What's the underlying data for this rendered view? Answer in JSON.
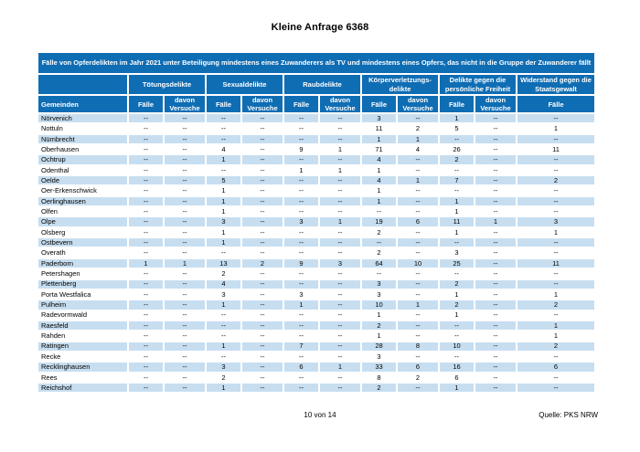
{
  "page": {
    "title": "Kleine Anfrage 6368",
    "page_number": "10 von 14",
    "source": "Quelle: PKS NRW"
  },
  "table": {
    "caption": "Fälle von Opferdelikten im Jahr 2021 unter Beteiligung mindestens eines Zuwanderers als TV und mindestens eines Opfers, das nicht in die Gruppe der Zuwanderer fällt",
    "row_header_label": "Gemeinden",
    "empty_marker": "--",
    "column_groups": [
      {
        "label": "Tötungsdelikte",
        "columns": [
          "Fälle",
          "davon Versuche"
        ]
      },
      {
        "label": "Sexualdelikte",
        "columns": [
          "Fälle",
          "davon Versuche"
        ]
      },
      {
        "label": "Raubdelikte",
        "columns": [
          "Fälle",
          "davon Versuche"
        ]
      },
      {
        "label": "Körperverletzungs-delikte",
        "columns": [
          "Fälle",
          "davon Versuche"
        ]
      },
      {
        "label": "Delikte gegen die persönliche Freiheit",
        "columns": [
          "Fälle",
          "davon Versuche"
        ]
      },
      {
        "label": "Widerstand gegen die Staatsgewalt",
        "columns": [
          "Fälle"
        ]
      }
    ],
    "rows": [
      {
        "gemeinde": "Nörvenich",
        "values": [
          "--",
          "--",
          "--",
          "--",
          "--",
          "--",
          "3",
          "--",
          "1",
          "--",
          "--"
        ]
      },
      {
        "gemeinde": "Nottuln",
        "values": [
          "--",
          "--",
          "--",
          "--",
          "--",
          "--",
          "11",
          "2",
          "5",
          "--",
          "1"
        ]
      },
      {
        "gemeinde": "Nümbrecht",
        "values": [
          "--",
          "--",
          "--",
          "--",
          "--",
          "--",
          "1",
          "1",
          "--",
          "--",
          "--"
        ]
      },
      {
        "gemeinde": "Oberhausen",
        "values": [
          "--",
          "--",
          "4",
          "--",
          "9",
          "1",
          "71",
          "4",
          "26",
          "--",
          "11"
        ]
      },
      {
        "gemeinde": "Ochtrup",
        "values": [
          "--",
          "--",
          "1",
          "--",
          "--",
          "--",
          "4",
          "--",
          "2",
          "--",
          "--"
        ]
      },
      {
        "gemeinde": "Odenthal",
        "values": [
          "--",
          "--",
          "--",
          "--",
          "1",
          "1",
          "1",
          "--",
          "--",
          "--",
          "--"
        ]
      },
      {
        "gemeinde": "Oelde",
        "values": [
          "--",
          "--",
          "5",
          "--",
          "--",
          "--",
          "4",
          "1",
          "7",
          "--",
          "2"
        ]
      },
      {
        "gemeinde": "Oer-Erkenschwick",
        "values": [
          "--",
          "--",
          "1",
          "--",
          "--",
          "--",
          "1",
          "--",
          "--",
          "--",
          "--"
        ]
      },
      {
        "gemeinde": "Oerlinghausen",
        "values": [
          "--",
          "--",
          "1",
          "--",
          "--",
          "--",
          "1",
          "--",
          "1",
          "--",
          "--"
        ]
      },
      {
        "gemeinde": "Olfen",
        "values": [
          "--",
          "--",
          "1",
          "--",
          "--",
          "--",
          "--",
          "--",
          "1",
          "--",
          "--"
        ]
      },
      {
        "gemeinde": "Olpe",
        "values": [
          "--",
          "--",
          "3",
          "--",
          "3",
          "1",
          "19",
          "6",
          "11",
          "1",
          "3"
        ]
      },
      {
        "gemeinde": "Olsberg",
        "values": [
          "--",
          "--",
          "1",
          "--",
          "--",
          "--",
          "2",
          "--",
          "1",
          "--",
          "1"
        ]
      },
      {
        "gemeinde": "Ostbevern",
        "values": [
          "--",
          "--",
          "1",
          "--",
          "--",
          "--",
          "--",
          "--",
          "--",
          "--",
          "--"
        ]
      },
      {
        "gemeinde": "Overath",
        "values": [
          "--",
          "--",
          "--",
          "--",
          "--",
          "--",
          "2",
          "--",
          "3",
          "--",
          "--"
        ]
      },
      {
        "gemeinde": "Paderborn",
        "values": [
          "1",
          "1",
          "13",
          "2",
          "9",
          "3",
          "64",
          "10",
          "25",
          "--",
          "11"
        ]
      },
      {
        "gemeinde": "Petershagen",
        "values": [
          "--",
          "--",
          "2",
          "--",
          "--",
          "--",
          "--",
          "--",
          "--",
          "--",
          "--"
        ]
      },
      {
        "gemeinde": "Plettenberg",
        "values": [
          "--",
          "--",
          "4",
          "--",
          "--",
          "--",
          "3",
          "--",
          "2",
          "--",
          "--"
        ]
      },
      {
        "gemeinde": "Porta Westfalica",
        "values": [
          "--",
          "--",
          "3",
          "--",
          "3",
          "--",
          "3",
          "--",
          "1",
          "--",
          "1"
        ]
      },
      {
        "gemeinde": "Pulheim",
        "values": [
          "--",
          "--",
          "1",
          "--",
          "1",
          "--",
          "10",
          "1",
          "2",
          "--",
          "2"
        ]
      },
      {
        "gemeinde": "Radevormwald",
        "values": [
          "--",
          "--",
          "--",
          "--",
          "--",
          "--",
          "1",
          "--",
          "1",
          "--",
          "--"
        ]
      },
      {
        "gemeinde": "Raesfeld",
        "values": [
          "--",
          "--",
          "--",
          "--",
          "--",
          "--",
          "2",
          "--",
          "--",
          "--",
          "1"
        ]
      },
      {
        "gemeinde": "Rahden",
        "values": [
          "--",
          "--",
          "--",
          "--",
          "--",
          "--",
          "1",
          "--",
          "--",
          "--",
          "1"
        ]
      },
      {
        "gemeinde": "Ratingen",
        "values": [
          "--",
          "--",
          "1",
          "--",
          "7",
          "--",
          "28",
          "8",
          "10",
          "--",
          "2"
        ]
      },
      {
        "gemeinde": "Recke",
        "values": [
          "--",
          "--",
          "--",
          "--",
          "--",
          "--",
          "3",
          "--",
          "--",
          "--",
          "--"
        ]
      },
      {
        "gemeinde": "Recklinghausen",
        "values": [
          "--",
          "--",
          "3",
          "--",
          "6",
          "1",
          "33",
          "6",
          "16",
          "--",
          "6"
        ]
      },
      {
        "gemeinde": "Rees",
        "values": [
          "--",
          "--",
          "2",
          "--",
          "--",
          "--",
          "8",
          "2",
          "6",
          "--",
          "--"
        ]
      },
      {
        "gemeinde": "Reichshof",
        "values": [
          "--",
          "--",
          "1",
          "--",
          "--",
          "--",
          "2",
          "--",
          "1",
          "--",
          "--"
        ]
      }
    ],
    "colors": {
      "header_bg": "#0f6db4",
      "header_text": "#ffffff",
      "stripe_bg": "#c7def0"
    }
  }
}
